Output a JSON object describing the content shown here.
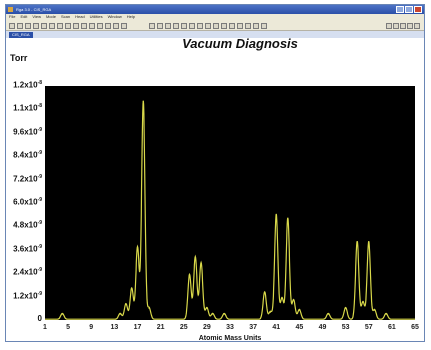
{
  "window": {
    "title": "Rga 3.0 - CIS_RGA",
    "menu": [
      "File",
      "Edit",
      "View",
      "Mode",
      "Scan",
      "Head",
      "Utilities",
      "Window",
      "Help"
    ],
    "doc_tab": "CIS_RGA"
  },
  "chart_data": {
    "type": "line",
    "title": "Vacuum Diagnosis",
    "unit_label": "Torr",
    "xlabel": "Atomic Mass Units",
    "ylabel": "",
    "xlim": [
      1,
      65
    ],
    "ylim": [
      0,
      1.2e-08
    ],
    "background": "#000000",
    "line_color": "#d9d94a",
    "y_ticks": [
      {
        "value": 1.2e-08,
        "label": "1.2x10",
        "exp": "-8"
      },
      {
        "value": 1.08e-08,
        "label": "1.1x10",
        "exp": "-8"
      },
      {
        "value": 9.6e-09,
        "label": "9.6x10",
        "exp": "-9"
      },
      {
        "value": 8.4e-09,
        "label": "8.4x10",
        "exp": "-9"
      },
      {
        "value": 7.2e-09,
        "label": "7.2x10",
        "exp": "-9"
      },
      {
        "value": 6e-09,
        "label": "6.0x10",
        "exp": "-9"
      },
      {
        "value": 4.8e-09,
        "label": "4.8x10",
        "exp": "-9"
      },
      {
        "value": 3.6e-09,
        "label": "3.6x10",
        "exp": "-9"
      },
      {
        "value": 2.4e-09,
        "label": "2.4x10",
        "exp": "-9"
      },
      {
        "value": 1.2e-09,
        "label": "1.2x10",
        "exp": "-9"
      },
      {
        "value": 0,
        "label": "0",
        "exp": ""
      }
    ],
    "x_ticks": [
      "1",
      "5",
      "9",
      "13",
      "17",
      "21",
      "25",
      "29",
      "33",
      "37",
      "41",
      "45",
      "49",
      "53",
      "57",
      "61",
      "65"
    ],
    "peaks": [
      {
        "x": 4,
        "y": 3e-10
      },
      {
        "x": 14,
        "y": 3e-10
      },
      {
        "x": 15,
        "y": 8e-10
      },
      {
        "x": 16,
        "y": 1.6e-09
      },
      {
        "x": 17,
        "y": 3.7e-09
      },
      {
        "x": 18,
        "y": 1.12e-08
      },
      {
        "x": 19,
        "y": 6e-10
      },
      {
        "x": 26,
        "y": 2.3e-09
      },
      {
        "x": 27,
        "y": 3.2e-09
      },
      {
        "x": 28,
        "y": 2.9e-09
      },
      {
        "x": 29,
        "y": 6e-10
      },
      {
        "x": 30,
        "y": 3e-10
      },
      {
        "x": 32,
        "y": 3e-10
      },
      {
        "x": 39,
        "y": 1.4e-09
      },
      {
        "x": 40,
        "y": 4e-10
      },
      {
        "x": 41,
        "y": 5.4e-09
      },
      {
        "x": 42,
        "y": 1.1e-09
      },
      {
        "x": 43,
        "y": 5.2e-09
      },
      {
        "x": 44,
        "y": 1e-09
      },
      {
        "x": 45,
        "y": 5e-10
      },
      {
        "x": 50,
        "y": 3e-10
      },
      {
        "x": 53,
        "y": 6e-10
      },
      {
        "x": 55,
        "y": 4e-09
      },
      {
        "x": 56,
        "y": 9e-10
      },
      {
        "x": 57,
        "y": 4e-09
      },
      {
        "x": 58,
        "y": 5e-10
      },
      {
        "x": 60,
        "y": 3e-10
      }
    ]
  }
}
